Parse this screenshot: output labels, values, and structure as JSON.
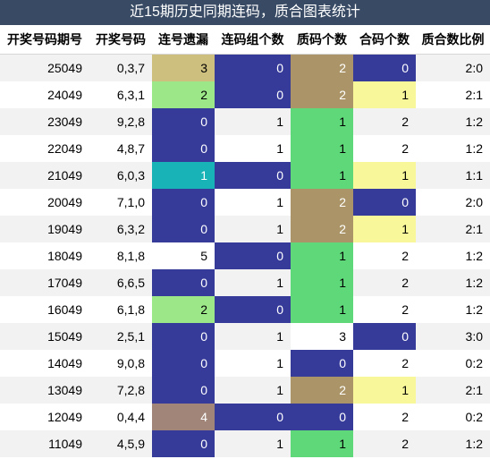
{
  "title": "近15期历史同期连码，质合图表统计",
  "headers": [
    "开奖号码期号",
    "开奖号码",
    "连号遗漏",
    "连码组个数",
    "质码个数",
    "合码个数",
    "质合数比例"
  ],
  "rows": [
    {
      "period": "25049",
      "numbers": "0,3,7",
      "consec_miss": "3",
      "consec_groups": "0",
      "prime_count": "2",
      "composite_count": "0",
      "ratio": "2:0"
    },
    {
      "period": "24049",
      "numbers": "6,3,1",
      "consec_miss": "2",
      "consec_groups": "0",
      "prime_count": "2",
      "composite_count": "1",
      "ratio": "2:1"
    },
    {
      "period": "23049",
      "numbers": "9,2,8",
      "consec_miss": "0",
      "consec_groups": "1",
      "prime_count": "1",
      "composite_count": "2",
      "ratio": "1:2"
    },
    {
      "period": "22049",
      "numbers": "4,8,7",
      "consec_miss": "0",
      "consec_groups": "1",
      "prime_count": "1",
      "composite_count": "2",
      "ratio": "1:2"
    },
    {
      "period": "21049",
      "numbers": "6,0,3",
      "consec_miss": "1",
      "consec_groups": "0",
      "prime_count": "1",
      "composite_count": "1",
      "ratio": "1:1"
    },
    {
      "period": "20049",
      "numbers": "7,1,0",
      "consec_miss": "0",
      "consec_groups": "1",
      "prime_count": "2",
      "composite_count": "0",
      "ratio": "2:0"
    },
    {
      "period": "19049",
      "numbers": "6,3,2",
      "consec_miss": "0",
      "consec_groups": "1",
      "prime_count": "2",
      "composite_count": "1",
      "ratio": "2:1"
    },
    {
      "period": "18049",
      "numbers": "8,1,8",
      "consec_miss": "5",
      "consec_groups": "0",
      "prime_count": "1",
      "composite_count": "2",
      "ratio": "1:2"
    },
    {
      "period": "17049",
      "numbers": "6,6,5",
      "consec_miss": "0",
      "consec_groups": "1",
      "prime_count": "1",
      "composite_count": "2",
      "ratio": "1:2"
    },
    {
      "period": "16049",
      "numbers": "6,1,8",
      "consec_miss": "2",
      "consec_groups": "0",
      "prime_count": "1",
      "composite_count": "2",
      "ratio": "1:2"
    },
    {
      "period": "15049",
      "numbers": "2,5,1",
      "consec_miss": "0",
      "consec_groups": "1",
      "prime_count": "3",
      "composite_count": "0",
      "ratio": "3:0"
    },
    {
      "period": "14049",
      "numbers": "9,0,8",
      "consec_miss": "0",
      "consec_groups": "1",
      "prime_count": "0",
      "composite_count": "2",
      "ratio": "0:2"
    },
    {
      "period": "13049",
      "numbers": "7,2,8",
      "consec_miss": "0",
      "consec_groups": "1",
      "prime_count": "2",
      "composite_count": "1",
      "ratio": "2:1"
    },
    {
      "period": "12049",
      "numbers": "0,4,4",
      "consec_miss": "4",
      "consec_groups": "0",
      "prime_count": "0",
      "composite_count": "2",
      "ratio": "0:2"
    },
    {
      "period": "11049",
      "numbers": "4,5,9",
      "consec_miss": "0",
      "consec_groups": "1",
      "prime_count": "1",
      "composite_count": "2",
      "ratio": "1:2"
    }
  ],
  "cell_colors": [
    [
      "khaki",
      "blue",
      "tan",
      "blue"
    ],
    [
      "lightgreen",
      "blue",
      "tan",
      "yellow"
    ],
    [
      "blue",
      "none",
      "green",
      "none"
    ],
    [
      "blue",
      "none",
      "green",
      "none"
    ],
    [
      "teal",
      "blue",
      "green",
      "yellow"
    ],
    [
      "blue",
      "none",
      "tan",
      "blue"
    ],
    [
      "blue",
      "none",
      "tan",
      "yellow"
    ],
    [
      "none",
      "blue",
      "green",
      "none"
    ],
    [
      "blue",
      "none",
      "green",
      "none"
    ],
    [
      "lightgreen",
      "blue",
      "green",
      "none"
    ],
    [
      "blue",
      "none",
      "white",
      "blue"
    ],
    [
      "blue",
      "none",
      "blue",
      "none"
    ],
    [
      "blue",
      "none",
      "tan",
      "yellow"
    ],
    [
      "mauve",
      "blue",
      "blue",
      "none"
    ],
    [
      "blue",
      "none",
      "green",
      "none"
    ]
  ],
  "palette": {
    "title_bg": "#384a64",
    "blue": "#363b9a",
    "tan": "#ab9568",
    "khaki": "#cdbf7d",
    "green": "#5fd87a",
    "lightgreen": "#9ce889",
    "yellow": "#f8f89b",
    "teal": "#17b3b6",
    "mauve": "#a08578",
    "row_alt": "#f2f2f2"
  }
}
